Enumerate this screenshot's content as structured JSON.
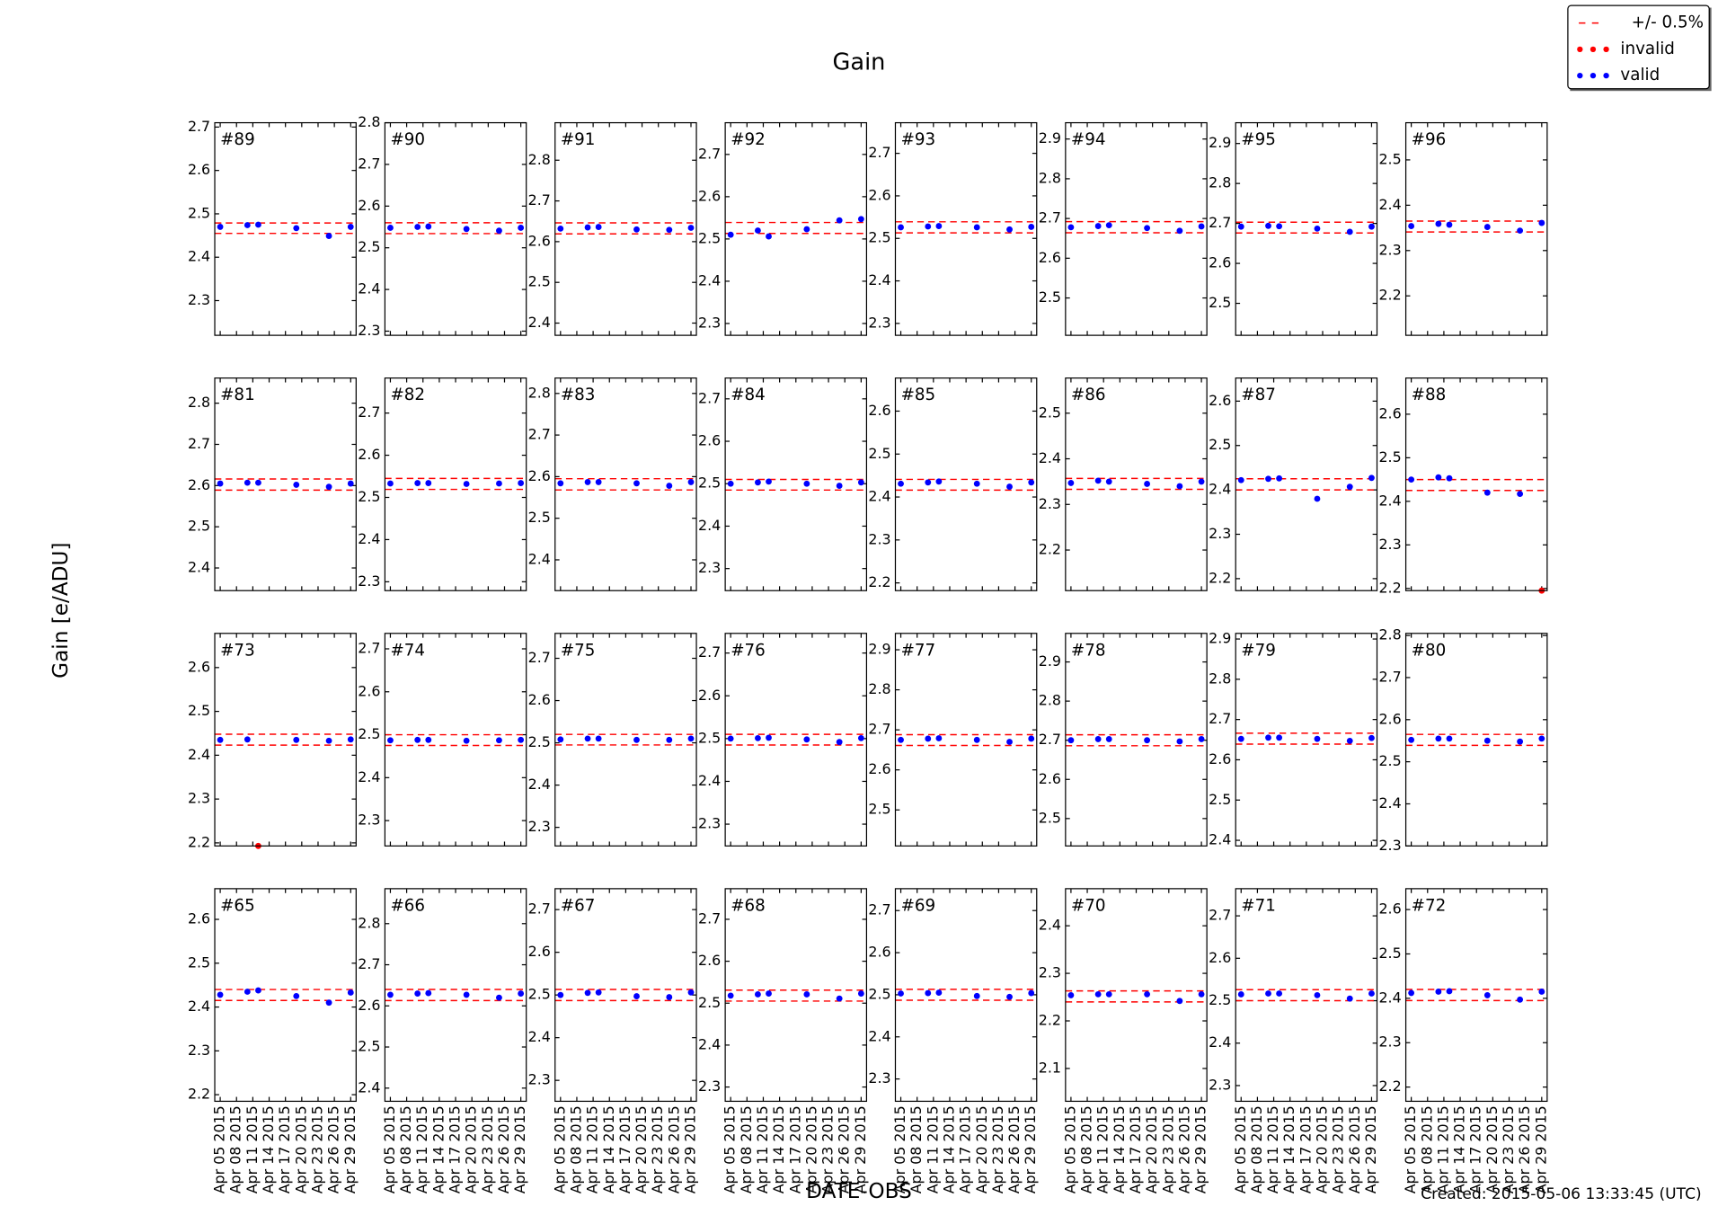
{
  "chart_data": {
    "type": "scatter",
    "title": "Gain",
    "xlabel": "DATE-OBS",
    "ylabel": "Gain [e/ADU]",
    "footer": "Created: 2015-05-06 13:33:45 (UTC)",
    "legend": "upper right",
    "band_label": "+/- 0.5%",
    "band_color": "red",
    "series": [
      {
        "name": "invalid",
        "color": "red"
      },
      {
        "name": "valid",
        "color": "blue"
      }
    ],
    "x": [
      "2015-04-05",
      "2015-04-10",
      "2015-04-12",
      "2015-04-19",
      "2015-04-25",
      "2015-04-29"
    ],
    "xlim": [
      "2015-04-04",
      "2015-04-30"
    ],
    "xticks": [
      {
        "value": "2015-04-05",
        "label": "Apr 05 2015"
      },
      {
        "value": "2015-04-08",
        "label": "Apr 08 2015"
      },
      {
        "value": "2015-04-11",
        "label": "Apr 11 2015"
      },
      {
        "value": "2015-04-14",
        "label": "Apr 14 2015"
      },
      {
        "value": "2015-04-17",
        "label": "Apr 17 2015"
      },
      {
        "value": "2015-04-20",
        "label": "Apr 20 2015"
      },
      {
        "value": "2015-04-23",
        "label": "Apr 23 2015"
      },
      {
        "value": "2015-04-26",
        "label": "Apr 26 2015"
      },
      {
        "value": "2015-04-29",
        "label": "Apr 29 2015"
      }
    ],
    "panels": [
      {
        "title": "#89",
        "ylim": [
          2.22,
          2.71
        ],
        "yticks": [
          2.3,
          2.4,
          2.5,
          2.6,
          2.7
        ],
        "band": [
          2.455,
          2.479
        ],
        "series_values": [
          [
            null,
            null,
            null,
            null,
            null,
            null
          ],
          [
            2.47,
            2.474,
            2.475,
            2.467,
            2.449,
            2.47
          ]
        ]
      },
      {
        "title": "#90",
        "ylim": [
          2.29,
          2.8
        ],
        "yticks": [
          2.3,
          2.4,
          2.5,
          2.6,
          2.7,
          2.8
        ],
        "band": [
          2.534,
          2.56
        ],
        "series_values": [
          [
            null,
            null,
            null,
            null,
            null,
            null
          ],
          [
            2.548,
            2.55,
            2.551,
            2.545,
            2.541,
            2.548
          ]
        ]
      },
      {
        "title": "#91",
        "ylim": [
          2.37,
          2.892
        ],
        "yticks": [
          2.4,
          2.5,
          2.6,
          2.7,
          2.8
        ],
        "band": [
          2.619,
          2.646
        ],
        "series_values": [
          [
            null,
            null,
            null,
            null,
            null,
            null
          ],
          [
            2.632,
            2.635,
            2.636,
            2.63,
            2.629,
            2.634
          ]
        ]
      },
      {
        "title": "#92",
        "ylim": [
          2.272,
          2.775
        ],
        "yticks": [
          2.3,
          2.4,
          2.5,
          2.6,
          2.7
        ],
        "band": [
          2.513,
          2.539
        ],
        "series_values": [
          [
            null,
            null,
            null,
            null,
            null,
            null
          ],
          [
            2.51,
            2.52,
            2.506,
            2.523,
            2.544,
            2.547
          ]
        ]
      },
      {
        "title": "#93",
        "ylim": [
          2.272,
          2.772
        ],
        "yticks": [
          2.3,
          2.4,
          2.5,
          2.6,
          2.7
        ],
        "band": [
          2.513,
          2.539
        ],
        "series_values": [
          [
            null,
            null,
            null,
            null,
            null,
            null
          ],
          [
            2.526,
            2.528,
            2.529,
            2.526,
            2.521,
            2.527
          ]
        ]
      },
      {
        "title": "#94",
        "ylim": [
          2.406,
          2.941
        ],
        "yticks": [
          2.5,
          2.6,
          2.7,
          2.8,
          2.9
        ],
        "band": [
          2.664,
          2.692
        ],
        "series_values": [
          [
            null,
            null,
            null,
            null,
            null,
            null
          ],
          [
            2.678,
            2.681,
            2.683,
            2.676,
            2.669,
            2.68
          ]
        ]
      },
      {
        "title": "#95",
        "ylim": [
          2.42,
          2.952
        ],
        "yticks": [
          2.5,
          2.6,
          2.7,
          2.8,
          2.9
        ],
        "band": [
          2.676,
          2.703
        ],
        "series_values": [
          [
            null,
            null,
            null,
            null,
            null,
            null
          ],
          [
            2.692,
            2.694,
            2.693,
            2.687,
            2.679,
            2.692
          ]
        ]
      },
      {
        "title": "#96",
        "ylim": [
          2.113,
          2.582
        ],
        "yticks": [
          2.2,
          2.3,
          2.4,
          2.5
        ],
        "band": [
          2.341,
          2.365
        ],
        "series_values": [
          [
            null,
            null,
            null,
            null,
            null,
            null
          ],
          [
            2.354,
            2.359,
            2.357,
            2.352,
            2.344,
            2.361
          ]
        ]
      },
      {
        "title": "#81",
        "ylim": [
          2.345,
          2.861
        ],
        "yticks": [
          2.4,
          2.5,
          2.6,
          2.7,
          2.8
        ],
        "band": [
          2.589,
          2.616
        ],
        "series_values": [
          [
            null,
            null,
            null,
            null,
            null,
            null
          ],
          [
            2.605,
            2.607,
            2.607,
            2.602,
            2.597,
            2.605
          ]
        ]
      },
      {
        "title": "#82",
        "ylim": [
          2.279,
          2.783
        ],
        "yticks": [
          2.3,
          2.4,
          2.5,
          2.6,
          2.7
        ],
        "band": [
          2.519,
          2.545
        ],
        "series_values": [
          [
            null,
            null,
            null,
            null,
            null,
            null
          ],
          [
            2.533,
            2.534,
            2.534,
            2.532,
            2.533,
            2.534
          ]
        ]
      },
      {
        "title": "#83",
        "ylim": [
          2.326,
          2.837
        ],
        "yticks": [
          2.4,
          2.5,
          2.6,
          2.7,
          2.8
        ],
        "band": [
          2.568,
          2.595
        ],
        "series_values": [
          [
            null,
            null,
            null,
            null,
            null,
            null
          ],
          [
            2.584,
            2.587,
            2.587,
            2.584,
            2.578,
            2.587
          ]
        ]
      },
      {
        "title": "#84",
        "ylim": [
          2.248,
          2.749
        ],
        "yticks": [
          2.3,
          2.4,
          2.5,
          2.6,
          2.7
        ],
        "band": [
          2.485,
          2.51
        ],
        "series_values": [
          [
            null,
            null,
            null,
            null,
            null,
            null
          ],
          [
            2.5,
            2.503,
            2.505,
            2.5,
            2.495,
            2.503
          ]
        ]
      },
      {
        "title": "#85",
        "ylim": [
          2.182,
          2.677
        ],
        "yticks": [
          2.2,
          2.3,
          2.4,
          2.5,
          2.6
        ],
        "band": [
          2.416,
          2.441
        ],
        "series_values": [
          [
            null,
            null,
            null,
            null,
            null,
            null
          ],
          [
            2.431,
            2.434,
            2.436,
            2.431,
            2.424,
            2.434
          ]
        ]
      },
      {
        "title": "#86",
        "ylim": [
          2.111,
          2.577
        ],
        "yticks": [
          2.2,
          2.3,
          2.4,
          2.5
        ],
        "band": [
          2.333,
          2.357
        ],
        "series_values": [
          [
            null,
            null,
            null,
            null,
            null,
            null
          ],
          [
            2.347,
            2.352,
            2.35,
            2.345,
            2.34,
            2.35
          ]
        ]
      },
      {
        "title": "#87",
        "ylim": [
          2.173,
          2.652
        ],
        "yticks": [
          2.2,
          2.3,
          2.4,
          2.5,
          2.6
        ],
        "band": [
          2.4,
          2.425
        ],
        "series_values": [
          [
            null,
            null,
            null,
            null,
            null,
            null
          ],
          [
            2.422,
            2.425,
            2.426,
            2.38,
            2.407,
            2.427
          ]
        ]
      },
      {
        "title": "#88",
        "ylim": [
          2.195,
          2.683
        ],
        "yticks": [
          2.2,
          2.3,
          2.4,
          2.5,
          2.6
        ],
        "band": [
          2.425,
          2.45
        ],
        "series_values": [
          [
            null,
            null,
            null,
            null,
            null,
            2.195
          ],
          [
            2.45,
            2.455,
            2.453,
            2.42,
            2.417,
            null
          ]
        ]
      },
      {
        "title": "#73",
        "ylim": [
          2.193,
          2.678
        ],
        "yticks": [
          2.2,
          2.3,
          2.4,
          2.5,
          2.6
        ],
        "band": [
          2.423,
          2.448
        ],
        "series_values": [
          [
            null,
            null,
            2.193,
            null,
            null,
            null
          ],
          [
            2.435,
            2.436,
            null,
            2.435,
            2.433,
            2.436
          ]
        ]
      },
      {
        "title": "#74",
        "ylim": [
          2.241,
          2.736
        ],
        "yticks": [
          2.3,
          2.4,
          2.5,
          2.6,
          2.7
        ],
        "band": [
          2.475,
          2.5
        ],
        "series_values": [
          [
            null,
            null,
            null,
            null,
            null,
            null
          ],
          [
            2.487,
            2.488,
            2.488,
            2.486,
            2.487,
            2.488
          ]
        ]
      },
      {
        "title": "#75",
        "ylim": [
          2.256,
          2.759
        ],
        "yticks": [
          2.3,
          2.4,
          2.5,
          2.6,
          2.7
        ],
        "band": [
          2.495,
          2.52
        ],
        "series_values": [
          [
            null,
            null,
            null,
            null,
            null,
            null
          ],
          [
            2.508,
            2.51,
            2.51,
            2.507,
            2.507,
            2.51
          ]
        ]
      },
      {
        "title": "#76",
        "ylim": [
          2.249,
          2.746
        ],
        "yticks": [
          2.3,
          2.4,
          2.5,
          2.6,
          2.7
        ],
        "band": [
          2.485,
          2.51
        ],
        "series_values": [
          [
            null,
            null,
            null,
            null,
            null,
            null
          ],
          [
            2.5,
            2.501,
            2.502,
            2.498,
            2.492,
            2.501
          ]
        ]
      },
      {
        "title": "#77",
        "ylim": [
          2.41,
          2.941
        ],
        "yticks": [
          2.5,
          2.6,
          2.7,
          2.8,
          2.9
        ],
        "band": [
          2.661,
          2.688
        ],
        "series_values": [
          [
            null,
            null,
            null,
            null,
            null,
            null
          ],
          [
            2.675,
            2.678,
            2.679,
            2.675,
            2.67,
            2.678
          ]
        ]
      },
      {
        "title": "#78",
        "ylim": [
          2.43,
          2.973
        ],
        "yticks": [
          2.5,
          2.6,
          2.7,
          2.8,
          2.9
        ],
        "band": [
          2.686,
          2.714
        ],
        "series_values": [
          [
            null,
            null,
            null,
            null,
            null,
            null
          ],
          [
            2.7,
            2.703,
            2.703,
            2.7,
            2.697,
            2.703
          ]
        ]
      },
      {
        "title": "#79",
        "ylim": [
          2.386,
          2.914
        ],
        "yticks": [
          2.4,
          2.5,
          2.6,
          2.7,
          2.8,
          2.9
        ],
        "band": [
          2.639,
          2.666
        ],
        "series_values": [
          [
            null,
            null,
            null,
            null,
            null,
            null
          ],
          [
            2.652,
            2.655,
            2.655,
            2.652,
            2.647,
            2.654
          ]
        ]
      },
      {
        "title": "#80",
        "ylim": [
          2.3,
          2.805
        ],
        "yticks": [
          2.3,
          2.4,
          2.5,
          2.6,
          2.7,
          2.8
        ],
        "band": [
          2.539,
          2.565
        ],
        "series_values": [
          [
            null,
            null,
            null,
            null,
            null,
            null
          ],
          [
            2.552,
            2.555,
            2.555,
            2.55,
            2.548,
            2.555
          ]
        ]
      },
      {
        "title": "#65",
        "ylim": [
          2.185,
          2.67
        ],
        "yticks": [
          2.2,
          2.3,
          2.4,
          2.5,
          2.6
        ],
        "band": [
          2.415,
          2.44
        ],
        "series_values": [
          [
            null,
            null,
            null,
            null,
            null,
            null
          ],
          [
            2.428,
            2.435,
            2.438,
            2.425,
            2.41,
            2.433
          ]
        ]
      },
      {
        "title": "#66",
        "ylim": [
          2.368,
          2.885
        ],
        "yticks": [
          2.4,
          2.5,
          2.6,
          2.7,
          2.8
        ],
        "band": [
          2.613,
          2.64
        ],
        "series_values": [
          [
            null,
            null,
            null,
            null,
            null,
            null
          ],
          [
            2.627,
            2.63,
            2.631,
            2.627,
            2.62,
            2.63
          ]
        ]
      },
      {
        "title": "#67",
        "ylim": [
          2.251,
          2.749
        ],
        "yticks": [
          2.3,
          2.4,
          2.5,
          2.6,
          2.7
        ],
        "band": [
          2.487,
          2.513
        ],
        "series_values": [
          [
            null,
            null,
            null,
            null,
            null,
            null
          ],
          [
            2.5,
            2.505,
            2.506,
            2.497,
            2.495,
            2.506
          ]
        ]
      },
      {
        "title": "#68",
        "ylim": [
          2.266,
          2.773
        ],
        "yticks": [
          2.3,
          2.4,
          2.5,
          2.6,
          2.7
        ],
        "band": [
          2.505,
          2.531
        ],
        "series_values": [
          [
            null,
            null,
            null,
            null,
            null,
            null
          ],
          [
            2.518,
            2.521,
            2.523,
            2.521,
            2.511,
            2.523
          ]
        ]
      },
      {
        "title": "#69",
        "ylim": [
          2.247,
          2.752
        ],
        "yticks": [
          2.3,
          2.4,
          2.5,
          2.6,
          2.7
        ],
        "band": [
          2.487,
          2.513
        ],
        "series_values": [
          [
            null,
            null,
            null,
            null,
            null,
            null
          ],
          [
            2.503,
            2.504,
            2.505,
            2.497,
            2.495,
            2.504
          ]
        ]
      },
      {
        "title": "#70",
        "ylim": [
          2.031,
          2.478
        ],
        "yticks": [
          2.1,
          2.2,
          2.3,
          2.4
        ],
        "band": [
          2.24,
          2.263
        ],
        "series_values": [
          [
            null,
            null,
            null,
            null,
            null,
            null
          ],
          [
            2.254,
            2.256,
            2.256,
            2.256,
            2.242,
            2.256
          ]
        ]
      },
      {
        "title": "#71",
        "ylim": [
          2.263,
          2.764
        ],
        "yticks": [
          2.3,
          2.4,
          2.5,
          2.6,
          2.7
        ],
        "band": [
          2.5,
          2.526
        ],
        "series_values": [
          [
            null,
            null,
            null,
            null,
            null,
            null
          ],
          [
            2.515,
            2.517,
            2.517,
            2.513,
            2.505,
            2.517
          ]
        ]
      },
      {
        "title": "#72",
        "ylim": [
          2.168,
          2.647
        ],
        "yticks": [
          2.2,
          2.3,
          2.4,
          2.5,
          2.6
        ],
        "band": [
          2.395,
          2.42
        ],
        "series_values": [
          [
            null,
            null,
            null,
            null,
            null,
            null
          ],
          [
            2.412,
            2.415,
            2.416,
            2.407,
            2.397,
            2.415
          ]
        ]
      }
    ]
  }
}
